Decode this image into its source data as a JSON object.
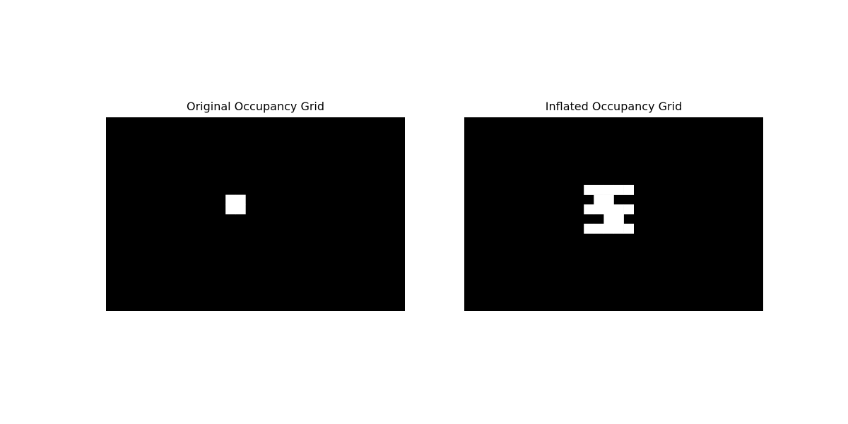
{
  "chart_data": [
    {
      "type": "heatmap",
      "title": "Original Occupancy Grid",
      "grid_size": [
        20,
        30
      ],
      "colormap": {
        "free": "#000000",
        "occupied": "#ffffff"
      },
      "occupied_cells": [
        [
          8,
          12
        ],
        [
          8,
          13
        ],
        [
          9,
          12
        ],
        [
          9,
          13
        ]
      ]
    },
    {
      "type": "heatmap",
      "title": "Inflated Occupancy Grid",
      "grid_size": [
        20,
        30
      ],
      "colormap": {
        "free": "#000000",
        "occupied": "#ffffff"
      },
      "occupied_cells": [
        [
          7,
          12
        ],
        [
          7,
          13
        ],
        [
          7,
          14
        ],
        [
          7,
          15
        ],
        [
          7,
          16
        ],
        [
          8,
          13
        ],
        [
          8,
          14
        ],
        [
          9,
          12
        ],
        [
          9,
          13
        ],
        [
          9,
          14
        ],
        [
          9,
          15
        ],
        [
          9,
          16
        ],
        [
          10,
          14
        ],
        [
          10,
          15
        ],
        [
          11,
          12
        ],
        [
          11,
          13
        ],
        [
          11,
          14
        ],
        [
          11,
          15
        ],
        [
          11,
          16
        ]
      ]
    }
  ]
}
